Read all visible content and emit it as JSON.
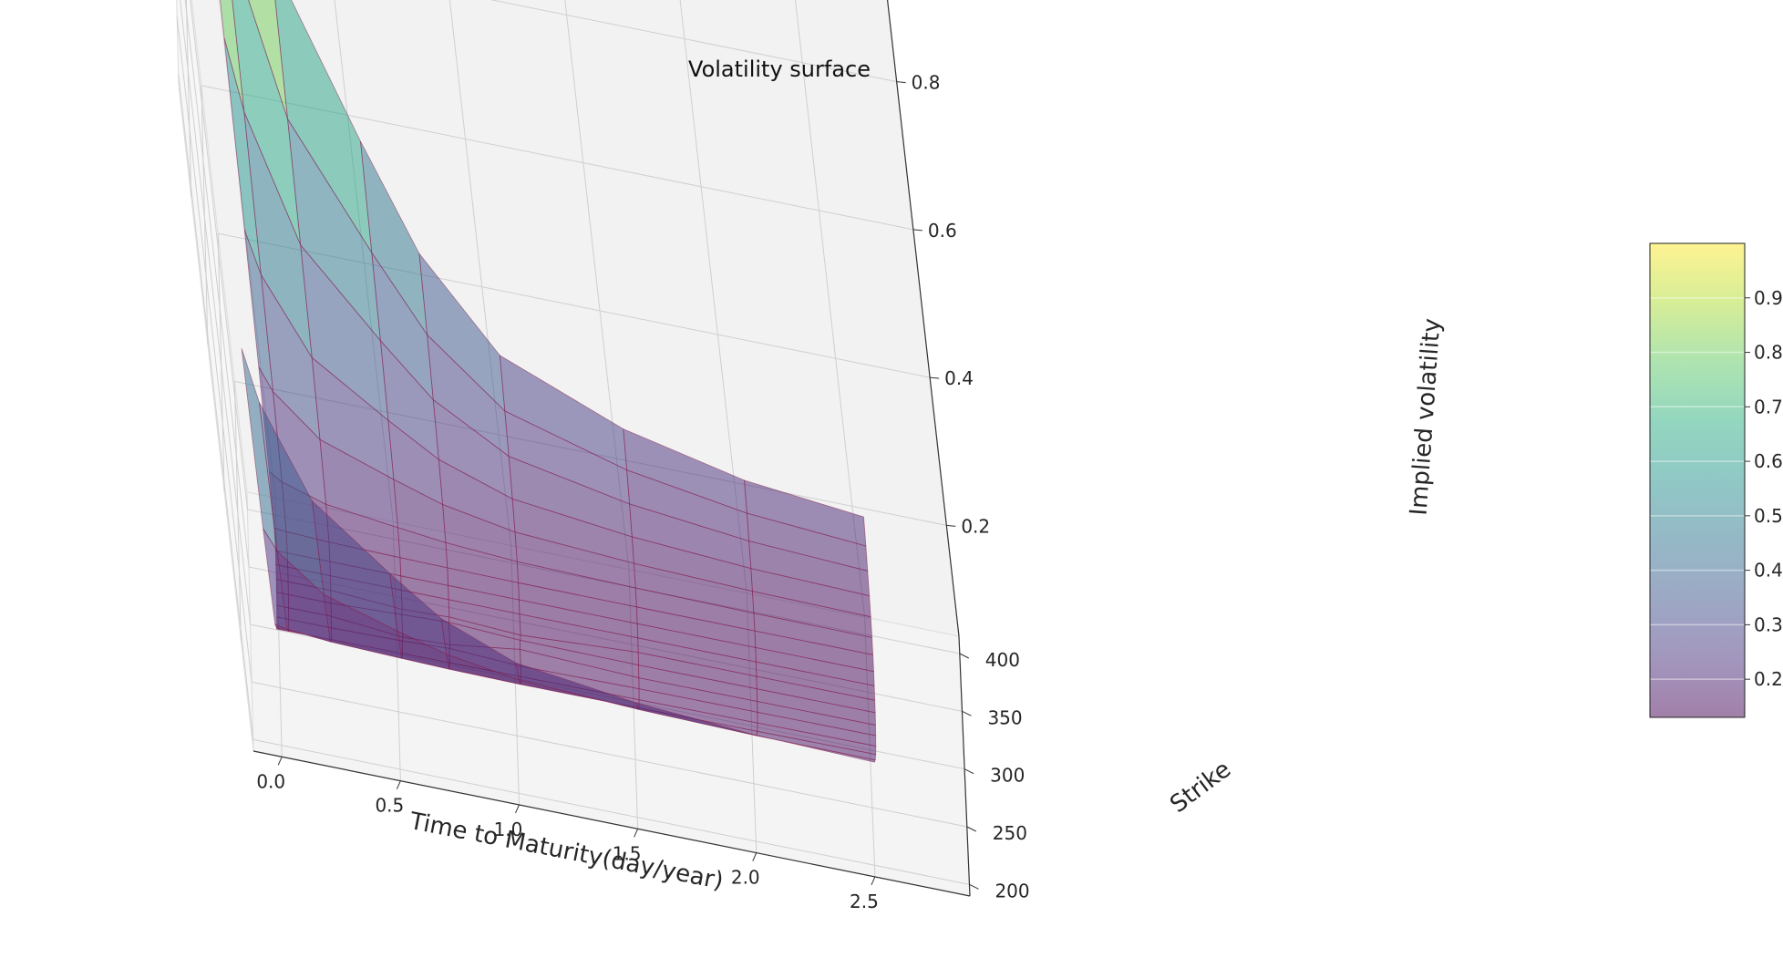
{
  "chart_data": {
    "type": "surface",
    "title": "Volatility surface",
    "xlabel": "Time to Maturity(day/year)",
    "ylabel": "Strike",
    "zlabel": "Implied volatility",
    "xlim": [
      -0.12,
      2.9
    ],
    "ylim": [
      190,
      415
    ],
    "zlim": [
      0.05,
      0.95
    ],
    "x_ticks": [
      "0.0",
      "0.5",
      "1.0",
      "1.5",
      "2.0",
      "2.5"
    ],
    "y_ticks": [
      "200",
      "250",
      "300",
      "350",
      "400"
    ],
    "z_ticks": [
      "0.2",
      "0.4",
      "0.6",
      "0.8"
    ],
    "colorbar": {
      "ticks": [
        "0.2",
        "0.3",
        "0.4",
        "0.5",
        "0.6",
        "0.7",
        "0.8",
        "0.9"
      ],
      "range": [
        0.13,
        1.0
      ],
      "colormap": "viridis",
      "alpha": 0.5
    },
    "maturities": [
      0.02,
      0.07,
      0.25,
      0.55,
      0.75,
      1.05,
      1.55,
      2.05,
      2.55
    ],
    "strikes": [
      200,
      212,
      225,
      237,
      250,
      262,
      275,
      287,
      300,
      312,
      325,
      337,
      350,
      362,
      375,
      387,
      400
    ],
    "grid": true,
    "edge_color": "#8b2252",
    "pane_color": "#f2f2f2"
  }
}
